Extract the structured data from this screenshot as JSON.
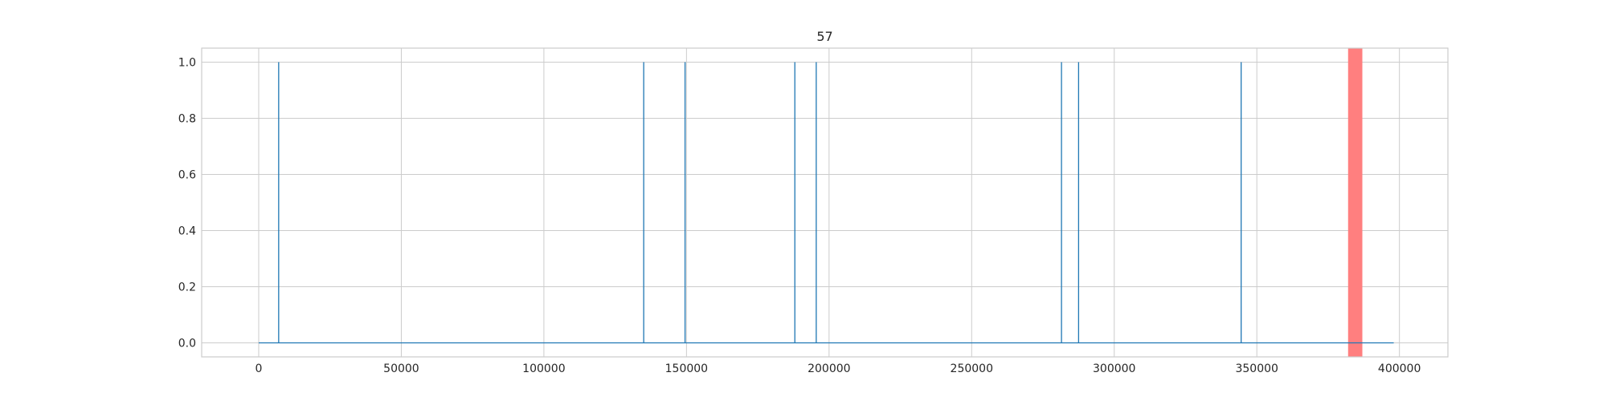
{
  "chart_data": {
    "type": "line",
    "title": "57",
    "xlabel": "",
    "ylabel": "",
    "xlim": [
      -20000,
      417000
    ],
    "ylim": [
      -0.05,
      1.05
    ],
    "x_ticks": [
      0,
      50000,
      100000,
      150000,
      200000,
      250000,
      300000,
      350000,
      400000
    ],
    "y_ticks": [
      0.0,
      0.2,
      0.4,
      0.6,
      0.8,
      1.0
    ],
    "x_tick_labels": [
      "0",
      "50000",
      "100000",
      "150000",
      "200000",
      "250000",
      "300000",
      "350000",
      "400000"
    ],
    "y_tick_labels": [
      "0.0",
      "0.2",
      "0.4",
      "0.6",
      "0.8",
      "1.0"
    ],
    "grid": true,
    "series": [
      {
        "color": "#1f77b4",
        "x_range": [
          0,
          398000
        ],
        "baseline": 0,
        "spike_value": 1,
        "spikes_x": [
          7000,
          135000,
          149500,
          188000,
          195500,
          281500,
          287500,
          344500
        ]
      }
    ],
    "highlight_band": {
      "x_start": 382000,
      "x_end": 387000,
      "color": "#ff7f7f"
    }
  }
}
